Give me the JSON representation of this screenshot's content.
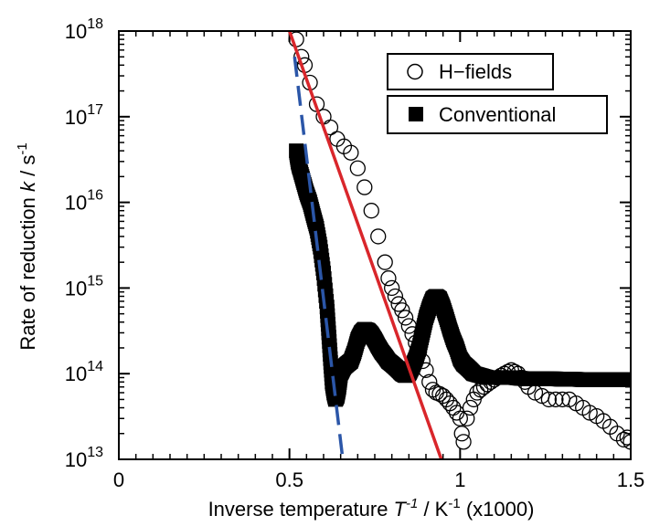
{
  "chart_data": {
    "type": "scatter",
    "xlabel": {
      "prefix": "Inverse temperature ",
      "symbol": "T",
      "symbol_sup": "-1",
      "sep": " / K",
      "unit_sup": "-1",
      "suffix": " (x1000)"
    },
    "ylabel": {
      "prefix": "Rate of reduction  ",
      "symbol": "k",
      "sep": " / s",
      "unit_sup": "-1"
    },
    "xlim": [
      0,
      1.5
    ],
    "ylim": [
      10000000000000.0,
      1e+18
    ],
    "yscale": "log",
    "x_ticks": [
      {
        "value": 0,
        "label": "0"
      },
      {
        "value": 0.5,
        "label": "0.5"
      },
      {
        "value": 1,
        "label": "1"
      },
      {
        "value": 1.5,
        "label": "1.5"
      }
    ],
    "y_ticks": [
      {
        "value": 10000000000000.0,
        "base": "10",
        "exp": "13"
      },
      {
        "value": 100000000000000.0,
        "base": "10",
        "exp": "14"
      },
      {
        "value": 1000000000000000.0,
        "base": "10",
        "exp": "15"
      },
      {
        "value": 1e+16,
        "base": "10",
        "exp": "16"
      },
      {
        "value": 1e+17,
        "base": "10",
        "exp": "17"
      },
      {
        "value": 1e+18,
        "base": "10",
        "exp": "18"
      }
    ],
    "legend_position": "top-right",
    "series": [
      {
        "name": "H−fields",
        "marker": "open-circle",
        "color": "#000000",
        "points": [
          [
            0.52,
            8e+17
          ],
          [
            0.535,
            5e+17
          ],
          [
            0.545,
            4e+17
          ],
          [
            0.56,
            2.5e+17
          ],
          [
            0.58,
            1.4e+17
          ],
          [
            0.6,
            1e+17
          ],
          [
            0.62,
            7.5e+16
          ],
          [
            0.64,
            5.5e+16
          ],
          [
            0.66,
            4.5e+16
          ],
          [
            0.68,
            3.8e+16
          ],
          [
            0.7,
            2.5e+16
          ],
          [
            0.72,
            1.5e+16
          ],
          [
            0.74,
            8000000000000000.0
          ],
          [
            0.76,
            4000000000000000.0
          ],
          [
            0.78,
            2000000000000000.0
          ],
          [
            0.79,
            1300000000000000.0
          ],
          [
            0.8,
            1000000000000000.0
          ],
          [
            0.81,
            800000000000000.0
          ],
          [
            0.82,
            650000000000000.0
          ],
          [
            0.83,
            550000000000000.0
          ],
          [
            0.84,
            450000000000000.0
          ],
          [
            0.85,
            360000000000000.0
          ],
          [
            0.86,
            290000000000000.0
          ],
          [
            0.87,
            230000000000000.0
          ],
          [
            0.88,
            180000000000000.0
          ],
          [
            0.89,
            140000000000000.0
          ],
          [
            0.9,
            110000000000000.0
          ],
          [
            0.91,
            80000000000000.0
          ],
          [
            0.92,
            65000000000000.0
          ],
          [
            0.93,
            60000000000000.0
          ],
          [
            0.94,
            58000000000000.0
          ],
          [
            0.95,
            55000000000000.0
          ],
          [
            0.96,
            50000000000000.0
          ],
          [
            0.97,
            45000000000000.0
          ],
          [
            0.98,
            40000000000000.0
          ],
          [
            0.99,
            35000000000000.0
          ],
          [
            1.0,
            30000000000000.0
          ],
          [
            1.005,
            20000000000000.0
          ],
          [
            1.01,
            16000000000000.0
          ],
          [
            1.02,
            30000000000000.0
          ],
          [
            1.03,
            40000000000000.0
          ],
          [
            1.04,
            50000000000000.0
          ],
          [
            1.05,
            60000000000000.0
          ],
          [
            1.06,
            65000000000000.0
          ],
          [
            1.07,
            70000000000000.0
          ],
          [
            1.08,
            75000000000000.0
          ],
          [
            1.09,
            80000000000000.0
          ],
          [
            1.1,
            85000000000000.0
          ],
          [
            1.11,
            90000000000000.0
          ],
          [
            1.12,
            95000000000000.0
          ],
          [
            1.13,
            100000000000000.0
          ],
          [
            1.14,
            105000000000000.0
          ],
          [
            1.15,
            110000000000000.0
          ],
          [
            1.16,
            105000000000000.0
          ],
          [
            1.17,
            100000000000000.0
          ],
          [
            1.18,
            90000000000000.0
          ],
          [
            1.19,
            80000000000000.0
          ],
          [
            1.2,
            70000000000000.0
          ],
          [
            1.22,
            60000000000000.0
          ],
          [
            1.24,
            55000000000000.0
          ],
          [
            1.26,
            50000000000000.0
          ],
          [
            1.28,
            50000000000000.0
          ],
          [
            1.3,
            50000000000000.0
          ],
          [
            1.32,
            50000000000000.0
          ],
          [
            1.34,
            45000000000000.0
          ],
          [
            1.36,
            40000000000000.0
          ],
          [
            1.38,
            35000000000000.0
          ],
          [
            1.4,
            32000000000000.0
          ],
          [
            1.42,
            28000000000000.0
          ],
          [
            1.44,
            24000000000000.0
          ],
          [
            1.46,
            20000000000000.0
          ],
          [
            1.48,
            17000000000000.0
          ],
          [
            1.49,
            18000000000000.0
          ],
          [
            1.5,
            16000000000000.0
          ]
        ]
      },
      {
        "name": "Conventional",
        "marker": "filled-square",
        "color": "#000000",
        "points": [
          [
            0.52,
            4e+16
          ],
          [
            0.525,
            3e+16
          ],
          [
            0.53,
            2.5e+16
          ],
          [
            0.54,
            1.8e+16
          ],
          [
            0.55,
            1.3e+16
          ],
          [
            0.56,
            1e+16
          ],
          [
            0.57,
            7000000000000000.0
          ],
          [
            0.58,
            5000000000000000.0
          ],
          [
            0.59,
            3000000000000000.0
          ],
          [
            0.6,
            1500000000000000.0
          ],
          [
            0.61,
            600000000000000.0
          ],
          [
            0.615,
            300000000000000.0
          ],
          [
            0.62,
            150000000000000.0
          ],
          [
            0.625,
            80000000000000.0
          ],
          [
            0.63,
            60000000000000.0
          ],
          [
            0.635,
            50000000000000.0
          ],
          [
            0.64,
            55000000000000.0
          ],
          [
            0.645,
            70000000000000.0
          ],
          [
            0.65,
            100000000000000.0
          ],
          [
            0.66,
            120000000000000.0
          ],
          [
            0.67,
            130000000000000.0
          ],
          [
            0.68,
            140000000000000.0
          ],
          [
            0.69,
            180000000000000.0
          ],
          [
            0.7,
            250000000000000.0
          ],
          [
            0.71,
            300000000000000.0
          ],
          [
            0.72,
            330000000000000.0
          ],
          [
            0.73,
            320000000000000.0
          ],
          [
            0.74,
            290000000000000.0
          ],
          [
            0.75,
            250000000000000.0
          ],
          [
            0.76,
            210000000000000.0
          ],
          [
            0.77,
            180000000000000.0
          ],
          [
            0.78,
            160000000000000.0
          ],
          [
            0.79,
            140000000000000.0
          ],
          [
            0.8,
            130000000000000.0
          ],
          [
            0.81,
            120000000000000.0
          ],
          [
            0.82,
            110000000000000.0
          ],
          [
            0.83,
            100000000000000.0
          ],
          [
            0.84,
            95000000000000.0
          ],
          [
            0.85,
            100000000000000.0
          ],
          [
            0.86,
            120000000000000.0
          ],
          [
            0.87,
            150000000000000.0
          ],
          [
            0.88,
            200000000000000.0
          ],
          [
            0.89,
            300000000000000.0
          ],
          [
            0.9,
            450000000000000.0
          ],
          [
            0.91,
            600000000000000.0
          ],
          [
            0.92,
            750000000000000.0
          ],
          [
            0.93,
            800000000000000.0
          ],
          [
            0.94,
            750000000000000.0
          ],
          [
            0.95,
            600000000000000.0
          ],
          [
            0.96,
            450000000000000.0
          ],
          [
            0.97,
            330000000000000.0
          ],
          [
            0.98,
            250000000000000.0
          ],
          [
            0.99,
            200000000000000.0
          ],
          [
            1.0,
            150000000000000.0
          ],
          [
            1.01,
            130000000000000.0
          ],
          [
            1.02,
            120000000000000.0
          ],
          [
            1.03,
            110000000000000.0
          ],
          [
            1.04,
            100000000000000.0
          ],
          [
            1.06,
            95000000000000.0
          ],
          [
            1.08,
            90000000000000.0
          ],
          [
            1.1,
            90000000000000.0
          ],
          [
            1.12,
            90000000000000.0
          ],
          [
            1.14,
            90000000000000.0
          ],
          [
            1.16,
            90000000000000.0
          ],
          [
            1.18,
            88000000000000.0
          ],
          [
            1.2,
            87000000000000.0
          ],
          [
            1.22,
            87000000000000.0
          ],
          [
            1.24,
            87000000000000.0
          ],
          [
            1.26,
            87000000000000.0
          ],
          [
            1.28,
            87000000000000.0
          ],
          [
            1.3,
            86000000000000.0
          ],
          [
            1.32,
            86000000000000.0
          ],
          [
            1.34,
            86000000000000.0
          ],
          [
            1.36,
            85000000000000.0
          ],
          [
            1.38,
            85000000000000.0
          ],
          [
            1.4,
            85000000000000.0
          ],
          [
            1.42,
            85000000000000.0
          ],
          [
            1.44,
            85000000000000.0
          ],
          [
            1.46,
            85000000000000.0
          ],
          [
            1.48,
            85000000000000.0
          ],
          [
            1.5,
            85000000000000.0
          ]
        ]
      }
    ],
    "fit_lines": [
      {
        "color": "#d9262b",
        "style": "solid",
        "points": [
          [
            0.5,
            1e+18
          ],
          [
            0.945,
            10000000000000.0
          ]
        ]
      },
      {
        "color": "#2b56a8",
        "style": "dashed",
        "points": [
          [
            0.515,
            5e+17
          ],
          [
            0.655,
            11000000000000.0
          ]
        ]
      }
    ]
  }
}
